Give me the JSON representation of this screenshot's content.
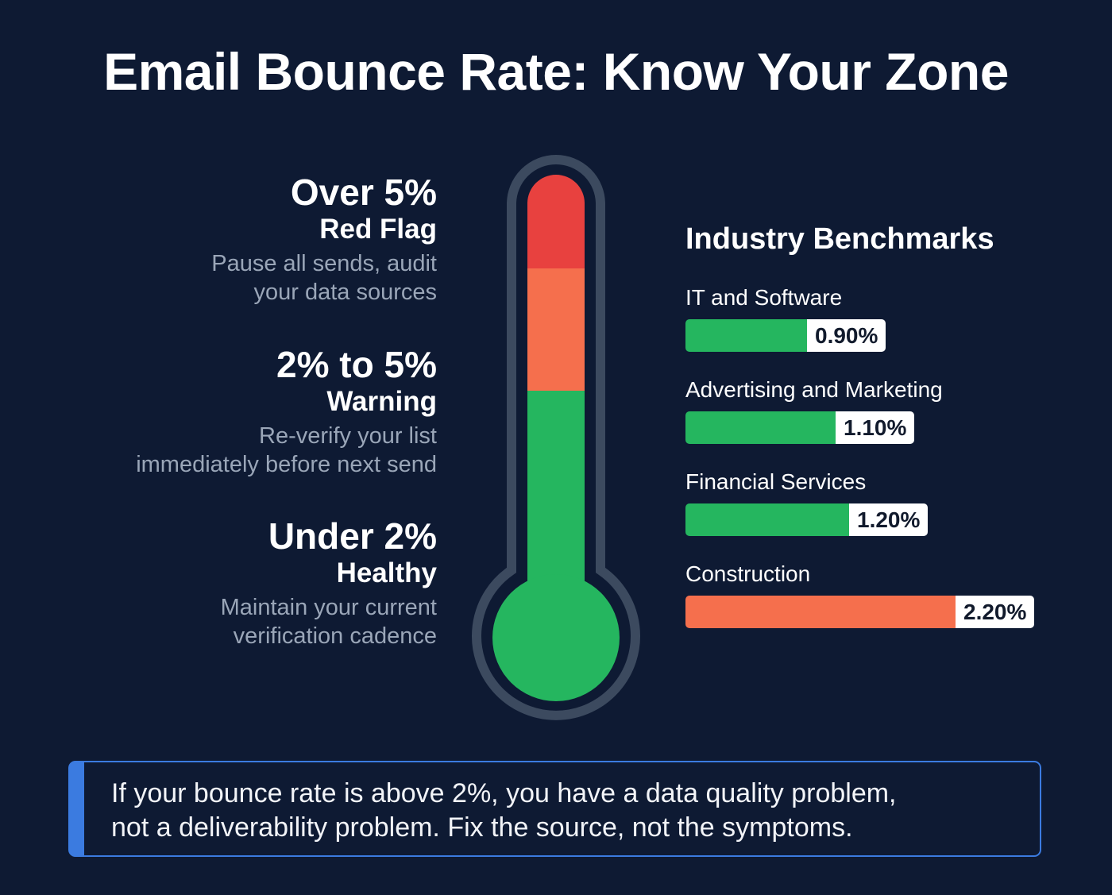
{
  "title": "Email Bounce Rate: Know Your Zone",
  "zones": [
    {
      "range": "Over 5%",
      "name": "Red Flag",
      "desc_line1": "Pause all sends, audit",
      "desc_line2": "your data sources",
      "color": "#e8413f"
    },
    {
      "range": "2% to 5%",
      "name": "Warning",
      "desc_line1": "Re-verify your list",
      "desc_line2": "immediately before next send",
      "color": "#f56f4d"
    },
    {
      "range": "Under 2%",
      "name": "Healthy",
      "desc_line1": "Maintain your current",
      "desc_line2": "verification cadence",
      "color": "#25b65f"
    }
  ],
  "benchmarks": {
    "title": "Industry Benchmarks",
    "items": [
      {
        "label": "IT and Software",
        "value": "0.90%",
        "fill_width": 153,
        "color": "#25b65f"
      },
      {
        "label": "Advertising and Marketing",
        "value": "1.10%",
        "fill_width": 189,
        "color": "#25b65f"
      },
      {
        "label": "Financial Services",
        "value": "1.20%",
        "fill_width": 206,
        "color": "#25b65f"
      },
      {
        "label": "Construction",
        "value": "2.20%",
        "fill_width": 340,
        "color": "#f56f4d"
      }
    ]
  },
  "callout": {
    "line1": "If your bounce rate is above 2%, you have a data quality problem,",
    "line2": "not a deliverability problem. Fix the source, not the symptoms.",
    "accent": "#3b7be0"
  },
  "colors": {
    "background": "#0e1a33",
    "thermo_outline": "#3c4a5f",
    "red": "#e8413f",
    "orange": "#f56f4d",
    "green": "#25b65f"
  },
  "chart_data": {
    "type": "bar",
    "title": "Industry Benchmarks",
    "orientation": "horizontal",
    "categories": [
      "IT and Software",
      "Advertising and Marketing",
      "Financial Services",
      "Construction"
    ],
    "values": [
      0.9,
      1.1,
      1.2,
      2.2
    ],
    "unit": "%",
    "bar_colors": [
      "#25b65f",
      "#25b65f",
      "#25b65f",
      "#f56f4d"
    ],
    "xlabel": "",
    "ylabel": "",
    "grid": false,
    "thermometer_zones": [
      {
        "label": "Over 5%",
        "status": "Red Flag",
        "color": "#e8413f"
      },
      {
        "label": "2% to 5%",
        "status": "Warning",
        "color": "#f56f4d"
      },
      {
        "label": "Under 2%",
        "status": "Healthy",
        "color": "#25b65f"
      }
    ]
  }
}
